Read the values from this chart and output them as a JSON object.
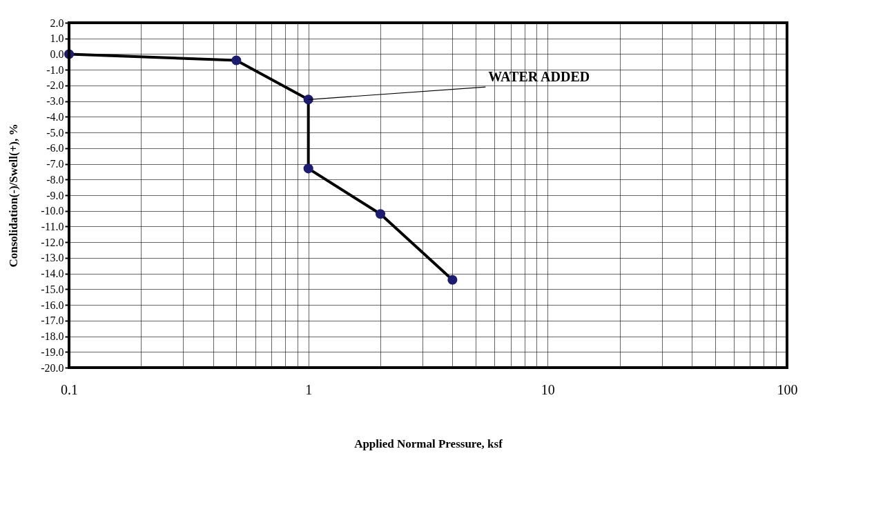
{
  "chart_data": {
    "type": "line",
    "xlabel": "Applied Normal Pressure, ksf",
    "ylabel": "Consolidation(-)/Swell(+), %",
    "x": [
      0.1,
      0.5,
      1,
      1,
      2,
      4
    ],
    "series": [
      {
        "color": "#1c1c70",
        "values": [
          0.0,
          -0.4,
          -2.9,
          -7.3,
          -10.2,
          -14.4
        ]
      }
    ],
    "log": "x",
    "xlim": [
      0.1,
      100
    ],
    "ylim": [
      -20,
      2
    ],
    "xticks": [
      0.1,
      {
        "value": 0.2,
        "label": null
      },
      {
        "value": 0.3,
        "label": null
      },
      {
        "value": 0.4,
        "label": null
      },
      {
        "value": 0.5,
        "label": null
      },
      {
        "value": 0.6,
        "label": null
      },
      {
        "value": 0.7,
        "label": null
      },
      {
        "value": 0.8,
        "label": null
      },
      {
        "value": 0.9,
        "label": null
      },
      1,
      {
        "value": 2,
        "label": null
      },
      {
        "value": 3,
        "label": null
      },
      {
        "value": 4,
        "label": null
      },
      {
        "value": 5,
        "label": null
      },
      {
        "value": 6,
        "label": null
      },
      {
        "value": 7,
        "label": null
      },
      {
        "value": 8,
        "label": null
      },
      {
        "value": 9,
        "label": null
      },
      10,
      {
        "value": 20,
        "label": null
      },
      {
        "value": 30,
        "label": null
      },
      {
        "value": 40,
        "label": null
      },
      {
        "value": 50,
        "label": null
      },
      {
        "value": 60,
        "label": null
      },
      {
        "value": 70,
        "label": null
      },
      {
        "value": 80,
        "label": null
      },
      {
        "value": 90,
        "label": null
      },
      100
    ],
    "yticks": [
      {
        "value": 2,
        "label": "2.0"
      },
      {
        "value": 1,
        "label": "1.0"
      },
      {
        "value": 0,
        "label": "0.0"
      },
      {
        "value": -1,
        "label": "-1.0"
      },
      {
        "value": -2,
        "label": "-2.0"
      },
      {
        "value": -3,
        "label": "-3.0"
      },
      {
        "value": -4,
        "label": "-4.0"
      },
      {
        "value": -5,
        "label": "-5.0"
      },
      {
        "value": -6,
        "label": "-6.0"
      },
      {
        "value": -7,
        "label": "-7.0"
      },
      {
        "value": -8,
        "label": "-8.0"
      },
      {
        "value": -9,
        "label": "-9.0"
      },
      {
        "value": -10,
        "label": "-10.0"
      },
      {
        "value": -11,
        "label": "-11.0"
      },
      {
        "value": -12,
        "label": "-12.0"
      },
      {
        "value": -13,
        "label": "-13.0"
      },
      {
        "value": -14,
        "label": "-14.0"
      },
      {
        "value": -15,
        "label": "-15.0"
      },
      {
        "value": -16,
        "label": "-16.0"
      },
      {
        "value": -17,
        "label": "-17.0"
      },
      {
        "value": -18,
        "label": "-18.0"
      },
      {
        "value": -19,
        "label": "-19.0"
      },
      {
        "value": -20,
        "label": "-20.0"
      }
    ],
    "grid": true,
    "marker": "circle",
    "line_style": "solid",
    "annotations": [
      {
        "text": "WATER ADDED",
        "x": 1,
        "y": -2.9
      }
    ]
  }
}
